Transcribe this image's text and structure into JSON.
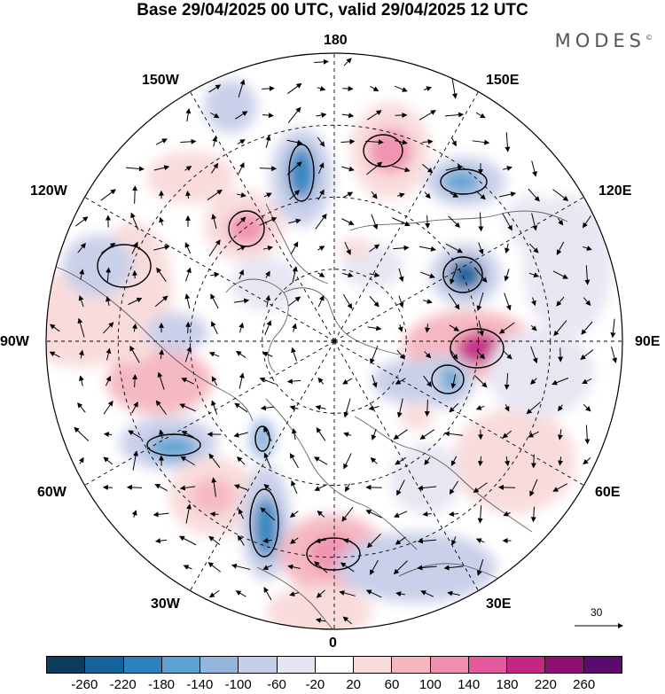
{
  "title": "Base 29/04/2025 00 UTC, valid 29/04/2025 12 UTC",
  "brand": {
    "name": "MODES",
    "mark": "©"
  },
  "longitude_labels": {
    "n180": "180",
    "w150": "150W",
    "e150": "150E",
    "w120": "120W",
    "e120": "120E",
    "w90": "90W",
    "e90": "90E",
    "w60": "60W",
    "e60": "60E",
    "w30": "30W",
    "e30": "30E",
    "s0": "0"
  },
  "reference_vector": {
    "label": "30"
  },
  "colorbar": {
    "colors": [
      "#0d3b5e",
      "#17629a",
      "#2b82bf",
      "#5ea2d2",
      "#94b6dd",
      "#c7cee8",
      "#e6e5f3",
      "#ffffff",
      "#f9dada",
      "#f5b6bf",
      "#f08fae",
      "#e35a9c",
      "#c52584",
      "#8f0f73",
      "#5b0b6e"
    ],
    "ticks": [
      "-260",
      "-220",
      "-180",
      "-140",
      "-100",
      "-60",
      "-20",
      "20",
      "60",
      "100",
      "140",
      "180",
      "220",
      "260"
    ]
  }
}
